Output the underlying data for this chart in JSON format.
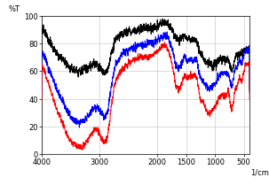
{
  "xlabel": "1/cm",
  "ylabel": "%T",
  "xlim": [
    4000,
    400
  ],
  "ylim": [
    0,
    100
  ],
  "xticks": [
    4000,
    3000,
    2000,
    1500,
    1000,
    500
  ],
  "yticks": [
    0,
    20,
    40,
    60,
    80,
    100
  ],
  "grid_color": "#cccccc",
  "bg_color": "#ffffff",
  "line_colors": [
    "black",
    "blue",
    "red"
  ],
  "line_width": 0.7
}
